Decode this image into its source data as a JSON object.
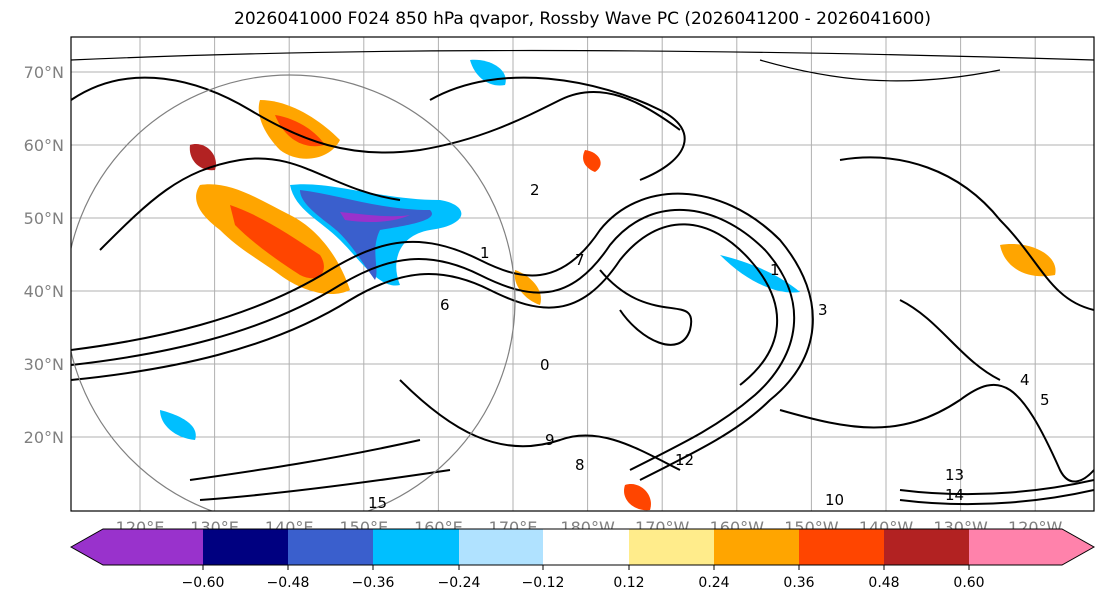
{
  "title": "2026041000 F024 850 hPa qvapor, Rossby Wave PC (2026041200 - 2026041600)",
  "lat_labels": [
    "70°N",
    "60°N",
    "50°N",
    "40°N",
    "30°N",
    "20°N"
  ],
  "lon_labels": [
    "120°E",
    "130°E",
    "140°E",
    "150°E",
    "160°E",
    "170°E",
    "180°W",
    "170°W",
    "160°W",
    "150°W",
    "140°W",
    "130°W",
    "120°W"
  ],
  "colorbar": {
    "ticks": [
      "−0.60",
      "−0.48",
      "−0.36",
      "−0.24",
      "−0.12",
      "0.12",
      "0.24",
      "0.36",
      "0.48",
      "0.60"
    ],
    "colors": [
      "#9932CC",
      "#000080",
      "#3A5FCD",
      "#00BFFF",
      "#B0E2FF",
      "#FFFFFF",
      "#FFEC8B",
      "#FFA500",
      "#FF4500",
      "#B22222",
      "#FF82AB"
    ]
  },
  "contour_labels": [
    "1",
    "1",
    "2",
    "3",
    "4",
    "5",
    "6",
    "8",
    "9",
    "12",
    "13",
    "14",
    "15",
    "0",
    "7",
    "10"
  ]
}
